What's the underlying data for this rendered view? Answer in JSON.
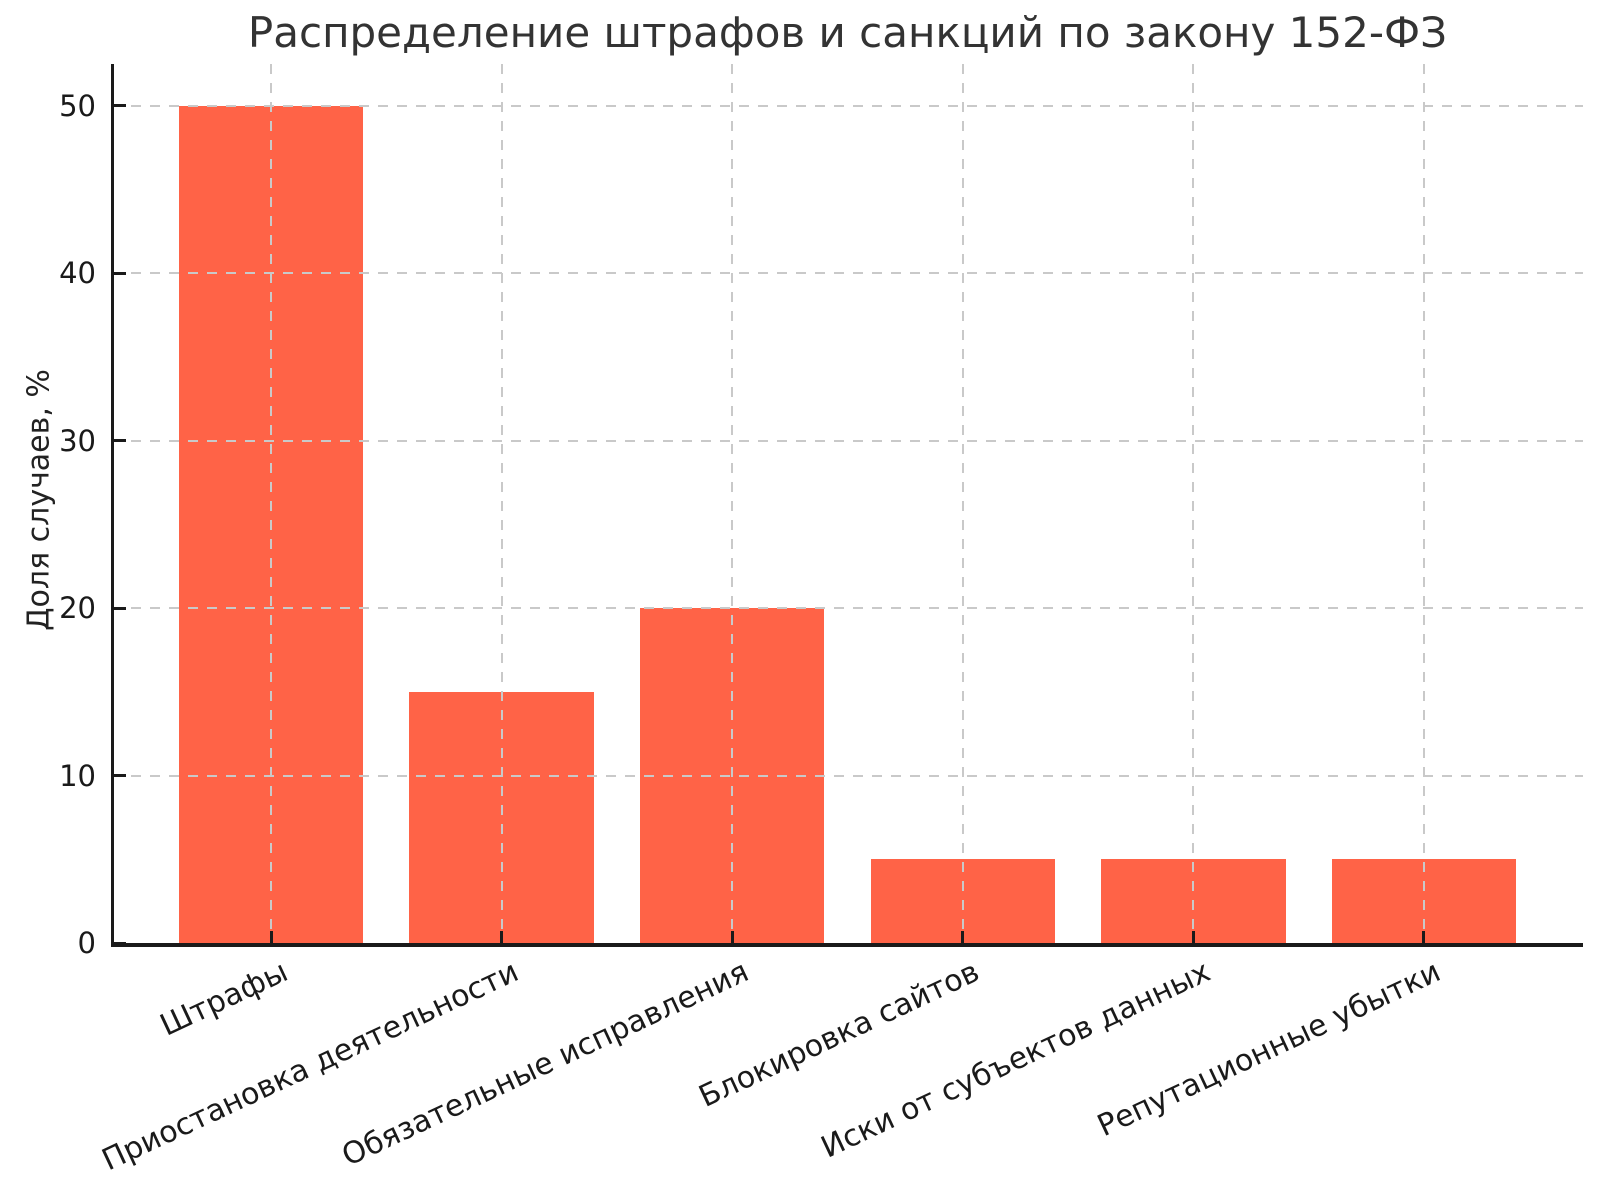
{
  "chart_data": {
    "type": "bar",
    "title": "Распределение штрафов и санкций по закону 152-ФЗ",
    "ylabel": "Доля случаев, %",
    "xlabel": "",
    "categories": [
      "Штрафы",
      "Приостановка деятельности",
      "Обязательные исправления",
      "Блокировка сайтов",
      "Иски от субъектов данных",
      "Репутационные убытки"
    ],
    "values": [
      50,
      15,
      20,
      5,
      5,
      5
    ],
    "yticks": [
      0,
      10,
      20,
      30,
      40,
      50
    ],
    "ylim": [
      0,
      52.5
    ],
    "bar_color": "#FF6347",
    "grid": {
      "show": true,
      "style": "dashed",
      "color": "#c9c9c9",
      "axes": "both",
      "above_bars": true
    },
    "legend": {
      "show": false
    },
    "tick_direction": "in",
    "xtick_rotation_deg": 25
  }
}
